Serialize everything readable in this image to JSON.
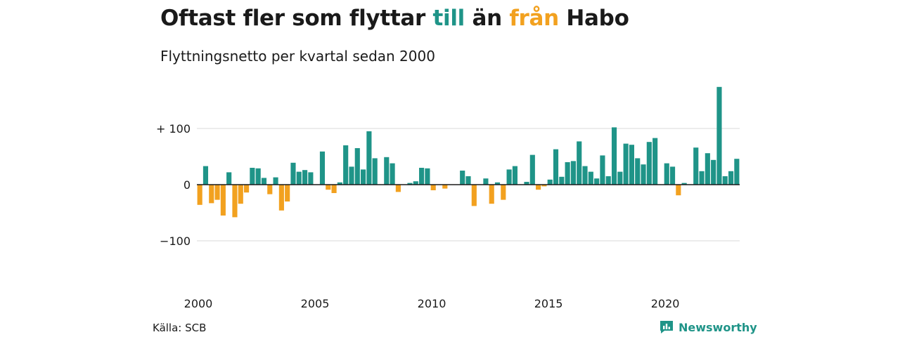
{
  "title": {
    "part1": "Oftast fler som flyttar ",
    "part2": "till",
    "part3": " än ",
    "part4": "från",
    "part5": " Habo"
  },
  "colors": {
    "positive": "#1f9488",
    "negative": "#f2a11f"
  },
  "source": "Källa: SCB",
  "brand": "Newsworthy",
  "chart_data": {
    "type": "bar",
    "subtitle": "Flyttningsnetto per kvartal sedan 2000",
    "ylim": [
      -175,
      175
    ],
    "y_ticks": [
      100,
      0,
      -100
    ],
    "y_tick_labels": [
      "+ 100",
      "0",
      "−100"
    ],
    "x_ticks": [
      2000,
      2005,
      2010,
      2015,
      2020
    ],
    "x_tick_labels": [
      "2000",
      "2005",
      "2010",
      "2015",
      "2020"
    ],
    "start_year": 2000,
    "grid": true,
    "values": [
      -36,
      33,
      -33,
      -27,
      -55,
      22,
      -58,
      -34,
      -14,
      30,
      29,
      12,
      -17,
      13,
      -46,
      -30,
      39,
      23,
      26,
      22,
      0,
      59,
      -9,
      -15,
      4,
      70,
      32,
      65,
      27,
      95,
      47,
      0,
      49,
      38,
      -13,
      0,
      3,
      6,
      30,
      29,
      -10,
      0,
      -7,
      0,
      0,
      25,
      15,
      -38,
      0,
      11,
      -34,
      4,
      -27,
      27,
      33,
      0,
      5,
      53,
      -9,
      -3,
      9,
      63,
      14,
      40,
      42,
      77,
      33,
      23,
      11,
      52,
      15,
      102,
      23,
      73,
      71,
      47,
      36,
      76,
      83,
      0,
      38,
      32,
      -19,
      3,
      0,
      66,
      24,
      56,
      44,
      174,
      15,
      24,
      46
    ]
  }
}
